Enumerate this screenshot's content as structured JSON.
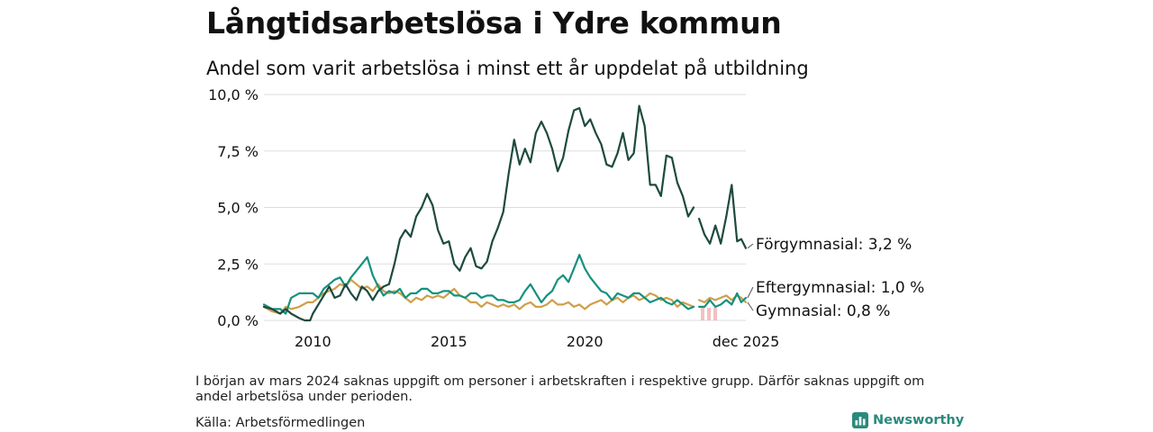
{
  "title": "Långtidsarbetslösa i Ydre kommun",
  "subtitle": "Andel som varit arbetslösa i minst ett år uppdelat på utbildning",
  "note": "I början av mars 2024 saknas uppgift om personer i arbetskraften i respektive grupp. Därför saknas uppgift om andel arbetslösa under perioden.",
  "source": "Källa: Arbetsförmedlingen",
  "brand": "Newsworthy",
  "colors": {
    "forgymnasial": "#1d4a3f",
    "eftergymnasial": "#15917f",
    "gymnasial": "#cf9f4a",
    "missing": "#f0b0b0",
    "grid": "#dddddd"
  },
  "chart_data": {
    "type": "line",
    "title": "Långtidsarbetslösa i Ydre kommun",
    "xlabel": "",
    "ylabel": "",
    "xlim": [
      2008.2,
      2025.92
    ],
    "ylim": [
      0,
      10
    ],
    "grid": true,
    "y_ticks": [
      {
        "value": 0,
        "label": "0,0 %"
      },
      {
        "value": 2.5,
        "label": "2,5 %"
      },
      {
        "value": 5,
        "label": "5,0 %"
      },
      {
        "value": 7.5,
        "label": "7,5 %"
      },
      {
        "value": 10,
        "label": "10,0 %"
      }
    ],
    "x_ticks": [
      {
        "value": 2010,
        "label": "2010"
      },
      {
        "value": 2015,
        "label": "2015"
      },
      {
        "value": 2020,
        "label": "2020"
      },
      {
        "value": 2025.92,
        "label": "dec 2025"
      }
    ],
    "missing_period": [
      2024.0,
      2024.2
    ],
    "series": [
      {
        "name": "Förgymnasial",
        "color_key": "forgymnasial",
        "end_label": "Förgymnasial: 3,2 %",
        "points": [
          [
            2008.2,
            0.6
          ],
          [
            2008.5,
            0.5
          ],
          [
            2008.8,
            0.3
          ],
          [
            2009.0,
            0.5
          ],
          [
            2009.2,
            0.3
          ],
          [
            2009.5,
            0.1
          ],
          [
            2009.7,
            0.0
          ],
          [
            2009.9,
            0.0
          ],
          [
            2010.0,
            0.3
          ],
          [
            2010.2,
            0.7
          ],
          [
            2010.4,
            1.1
          ],
          [
            2010.6,
            1.5
          ],
          [
            2010.8,
            1.0
          ],
          [
            2011.0,
            1.1
          ],
          [
            2011.2,
            1.6
          ],
          [
            2011.4,
            1.2
          ],
          [
            2011.6,
            0.9
          ],
          [
            2011.8,
            1.5
          ],
          [
            2012.0,
            1.3
          ],
          [
            2012.2,
            0.9
          ],
          [
            2012.4,
            1.3
          ],
          [
            2012.6,
            1.5
          ],
          [
            2012.8,
            1.6
          ],
          [
            2013.0,
            2.5
          ],
          [
            2013.2,
            3.6
          ],
          [
            2013.4,
            4.0
          ],
          [
            2013.6,
            3.7
          ],
          [
            2013.8,
            4.6
          ],
          [
            2014.0,
            5.0
          ],
          [
            2014.2,
            5.6
          ],
          [
            2014.4,
            5.1
          ],
          [
            2014.6,
            4.0
          ],
          [
            2014.8,
            3.4
          ],
          [
            2015.0,
            3.5
          ],
          [
            2015.2,
            2.5
          ],
          [
            2015.4,
            2.2
          ],
          [
            2015.6,
            2.8
          ],
          [
            2015.8,
            3.2
          ],
          [
            2016.0,
            2.4
          ],
          [
            2016.2,
            2.3
          ],
          [
            2016.4,
            2.6
          ],
          [
            2016.6,
            3.5
          ],
          [
            2016.8,
            4.1
          ],
          [
            2017.0,
            4.8
          ],
          [
            2017.2,
            6.5
          ],
          [
            2017.4,
            8.0
          ],
          [
            2017.6,
            6.9
          ],
          [
            2017.8,
            7.6
          ],
          [
            2018.0,
            7.0
          ],
          [
            2018.2,
            8.3
          ],
          [
            2018.4,
            8.8
          ],
          [
            2018.6,
            8.3
          ],
          [
            2018.8,
            7.6
          ],
          [
            2019.0,
            6.6
          ],
          [
            2019.2,
            7.2
          ],
          [
            2019.4,
            8.4
          ],
          [
            2019.6,
            9.3
          ],
          [
            2019.8,
            9.4
          ],
          [
            2020.0,
            8.6
          ],
          [
            2020.2,
            8.9
          ],
          [
            2020.4,
            8.3
          ],
          [
            2020.6,
            7.8
          ],
          [
            2020.8,
            6.9
          ],
          [
            2021.0,
            6.8
          ],
          [
            2021.2,
            7.4
          ],
          [
            2021.4,
            8.3
          ],
          [
            2021.6,
            7.1
          ],
          [
            2021.8,
            7.4
          ],
          [
            2022.0,
            9.5
          ],
          [
            2022.2,
            8.6
          ],
          [
            2022.4,
            6.0
          ],
          [
            2022.6,
            6.0
          ],
          [
            2022.8,
            5.5
          ],
          [
            2023.0,
            7.3
          ],
          [
            2023.2,
            7.2
          ],
          [
            2023.4,
            6.1
          ],
          [
            2023.6,
            5.5
          ],
          [
            2023.8,
            4.6
          ],
          [
            2024.0,
            5.0
          ],
          null,
          [
            2024.2,
            4.5
          ],
          [
            2024.4,
            3.8
          ],
          [
            2024.6,
            3.4
          ],
          [
            2024.8,
            4.2
          ],
          [
            2025.0,
            3.4
          ],
          [
            2025.2,
            4.6
          ],
          [
            2025.4,
            6.0
          ],
          [
            2025.6,
            3.5
          ],
          [
            2025.75,
            3.6
          ],
          [
            2025.92,
            3.2
          ]
        ]
      },
      {
        "name": "Eftergymnasial",
        "color_key": "eftergymnasial",
        "end_label": "Eftergymnasial: 1,0 %",
        "points": [
          [
            2008.2,
            0.7
          ],
          [
            2008.5,
            0.5
          ],
          [
            2008.8,
            0.5
          ],
          [
            2009.0,
            0.3
          ],
          [
            2009.2,
            1.0
          ],
          [
            2009.5,
            1.2
          ],
          [
            2009.8,
            1.2
          ],
          [
            2010.0,
            1.2
          ],
          [
            2010.2,
            1.0
          ],
          [
            2010.4,
            1.4
          ],
          [
            2010.6,
            1.6
          ],
          [
            2010.8,
            1.8
          ],
          [
            2011.0,
            1.9
          ],
          [
            2011.2,
            1.5
          ],
          [
            2011.4,
            1.9
          ],
          [
            2011.6,
            2.2
          ],
          [
            2011.8,
            2.5
          ],
          [
            2012.0,
            2.8
          ],
          [
            2012.2,
            2.0
          ],
          [
            2012.4,
            1.5
          ],
          [
            2012.6,
            1.1
          ],
          [
            2012.8,
            1.3
          ],
          [
            2013.0,
            1.2
          ],
          [
            2013.2,
            1.4
          ],
          [
            2013.4,
            1.0
          ],
          [
            2013.6,
            1.2
          ],
          [
            2013.8,
            1.2
          ],
          [
            2014.0,
            1.4
          ],
          [
            2014.2,
            1.4
          ],
          [
            2014.4,
            1.2
          ],
          [
            2014.6,
            1.2
          ],
          [
            2014.8,
            1.3
          ],
          [
            2015.0,
            1.3
          ],
          [
            2015.2,
            1.1
          ],
          [
            2015.4,
            1.1
          ],
          [
            2015.6,
            1.0
          ],
          [
            2015.8,
            1.2
          ],
          [
            2016.0,
            1.2
          ],
          [
            2016.2,
            1.0
          ],
          [
            2016.4,
            1.1
          ],
          [
            2016.6,
            1.1
          ],
          [
            2016.8,
            0.9
          ],
          [
            2017.0,
            0.9
          ],
          [
            2017.2,
            0.8
          ],
          [
            2017.4,
            0.8
          ],
          [
            2017.6,
            0.9
          ],
          [
            2017.8,
            1.3
          ],
          [
            2018.0,
            1.6
          ],
          [
            2018.2,
            1.2
          ],
          [
            2018.4,
            0.8
          ],
          [
            2018.6,
            1.1
          ],
          [
            2018.8,
            1.3
          ],
          [
            2019.0,
            1.8
          ],
          [
            2019.2,
            2.0
          ],
          [
            2019.4,
            1.7
          ],
          [
            2019.6,
            2.3
          ],
          [
            2019.8,
            2.9
          ],
          [
            2020.0,
            2.3
          ],
          [
            2020.2,
            1.9
          ],
          [
            2020.4,
            1.6
          ],
          [
            2020.6,
            1.3
          ],
          [
            2020.8,
            1.2
          ],
          [
            2021.0,
            0.9
          ],
          [
            2021.2,
            1.2
          ],
          [
            2021.4,
            1.1
          ],
          [
            2021.6,
            1.0
          ],
          [
            2021.8,
            1.2
          ],
          [
            2022.0,
            1.2
          ],
          [
            2022.2,
            1.0
          ],
          [
            2022.4,
            0.8
          ],
          [
            2022.6,
            0.9
          ],
          [
            2022.8,
            1.0
          ],
          [
            2023.0,
            0.8
          ],
          [
            2023.2,
            0.7
          ],
          [
            2023.4,
            0.9
          ],
          [
            2023.6,
            0.7
          ],
          [
            2023.8,
            0.5
          ],
          [
            2024.0,
            0.6
          ],
          null,
          [
            2024.2,
            0.6
          ],
          [
            2024.4,
            0.6
          ],
          [
            2024.6,
            0.9
          ],
          [
            2024.8,
            0.6
          ],
          [
            2025.0,
            0.7
          ],
          [
            2025.2,
            0.9
          ],
          [
            2025.4,
            0.7
          ],
          [
            2025.6,
            1.2
          ],
          [
            2025.75,
            0.8
          ],
          [
            2025.92,
            1.0
          ]
        ]
      },
      {
        "name": "Gymnasial",
        "color_key": "gymnasial",
        "end_label": "Gymnasial: 0,8 %",
        "points": [
          [
            2008.2,
            0.6
          ],
          [
            2008.5,
            0.4
          ],
          [
            2008.8,
            0.3
          ],
          [
            2009.0,
            0.6
          ],
          [
            2009.2,
            0.5
          ],
          [
            2009.5,
            0.6
          ],
          [
            2009.8,
            0.8
          ],
          [
            2010.0,
            0.8
          ],
          [
            2010.2,
            1.0
          ],
          [
            2010.4,
            1.2
          ],
          [
            2010.6,
            1.3
          ],
          [
            2010.8,
            1.4
          ],
          [
            2011.0,
            1.6
          ],
          [
            2011.2,
            1.5
          ],
          [
            2011.4,
            1.8
          ],
          [
            2011.6,
            1.6
          ],
          [
            2011.8,
            1.4
          ],
          [
            2012.0,
            1.5
          ],
          [
            2012.2,
            1.3
          ],
          [
            2012.4,
            1.6
          ],
          [
            2012.6,
            1.3
          ],
          [
            2012.8,
            1.2
          ],
          [
            2013.0,
            1.3
          ],
          [
            2013.2,
            1.2
          ],
          [
            2013.4,
            1.0
          ],
          [
            2013.6,
            0.8
          ],
          [
            2013.8,
            1.0
          ],
          [
            2014.0,
            0.9
          ],
          [
            2014.2,
            1.1
          ],
          [
            2014.4,
            1.0
          ],
          [
            2014.6,
            1.1
          ],
          [
            2014.8,
            1.0
          ],
          [
            2015.0,
            1.2
          ],
          [
            2015.2,
            1.4
          ],
          [
            2015.4,
            1.1
          ],
          [
            2015.6,
            1.0
          ],
          [
            2015.8,
            0.8
          ],
          [
            2016.0,
            0.8
          ],
          [
            2016.2,
            0.6
          ],
          [
            2016.4,
            0.8
          ],
          [
            2016.6,
            0.7
          ],
          [
            2016.8,
            0.6
          ],
          [
            2017.0,
            0.7
          ],
          [
            2017.2,
            0.6
          ],
          [
            2017.4,
            0.7
          ],
          [
            2017.6,
            0.5
          ],
          [
            2017.8,
            0.7
          ],
          [
            2018.0,
            0.8
          ],
          [
            2018.2,
            0.6
          ],
          [
            2018.4,
            0.6
          ],
          [
            2018.6,
            0.7
          ],
          [
            2018.8,
            0.9
          ],
          [
            2019.0,
            0.7
          ],
          [
            2019.2,
            0.7
          ],
          [
            2019.4,
            0.8
          ],
          [
            2019.6,
            0.6
          ],
          [
            2019.8,
            0.7
          ],
          [
            2020.0,
            0.5
          ],
          [
            2020.2,
            0.7
          ],
          [
            2020.4,
            0.8
          ],
          [
            2020.6,
            0.9
          ],
          [
            2020.8,
            0.7
          ],
          [
            2021.0,
            0.9
          ],
          [
            2021.2,
            1.0
          ],
          [
            2021.4,
            0.8
          ],
          [
            2021.6,
            1.0
          ],
          [
            2021.8,
            1.1
          ],
          [
            2022.0,
            0.9
          ],
          [
            2022.2,
            1.0
          ],
          [
            2022.4,
            1.2
          ],
          [
            2022.6,
            1.1
          ],
          [
            2022.8,
            0.9
          ],
          [
            2023.0,
            1.0
          ],
          [
            2023.2,
            0.9
          ],
          [
            2023.4,
            0.6
          ],
          [
            2023.6,
            0.8
          ],
          [
            2023.8,
            0.7
          ],
          [
            2024.0,
            0.6
          ],
          null,
          [
            2024.2,
            0.9
          ],
          [
            2024.4,
            0.8
          ],
          [
            2024.6,
            1.0
          ],
          [
            2024.8,
            0.9
          ],
          [
            2025.0,
            1.0
          ],
          [
            2025.2,
            1.1
          ],
          [
            2025.4,
            0.9
          ],
          [
            2025.6,
            1.1
          ],
          [
            2025.75,
            1.0
          ],
          [
            2025.92,
            0.8
          ]
        ]
      }
    ]
  }
}
